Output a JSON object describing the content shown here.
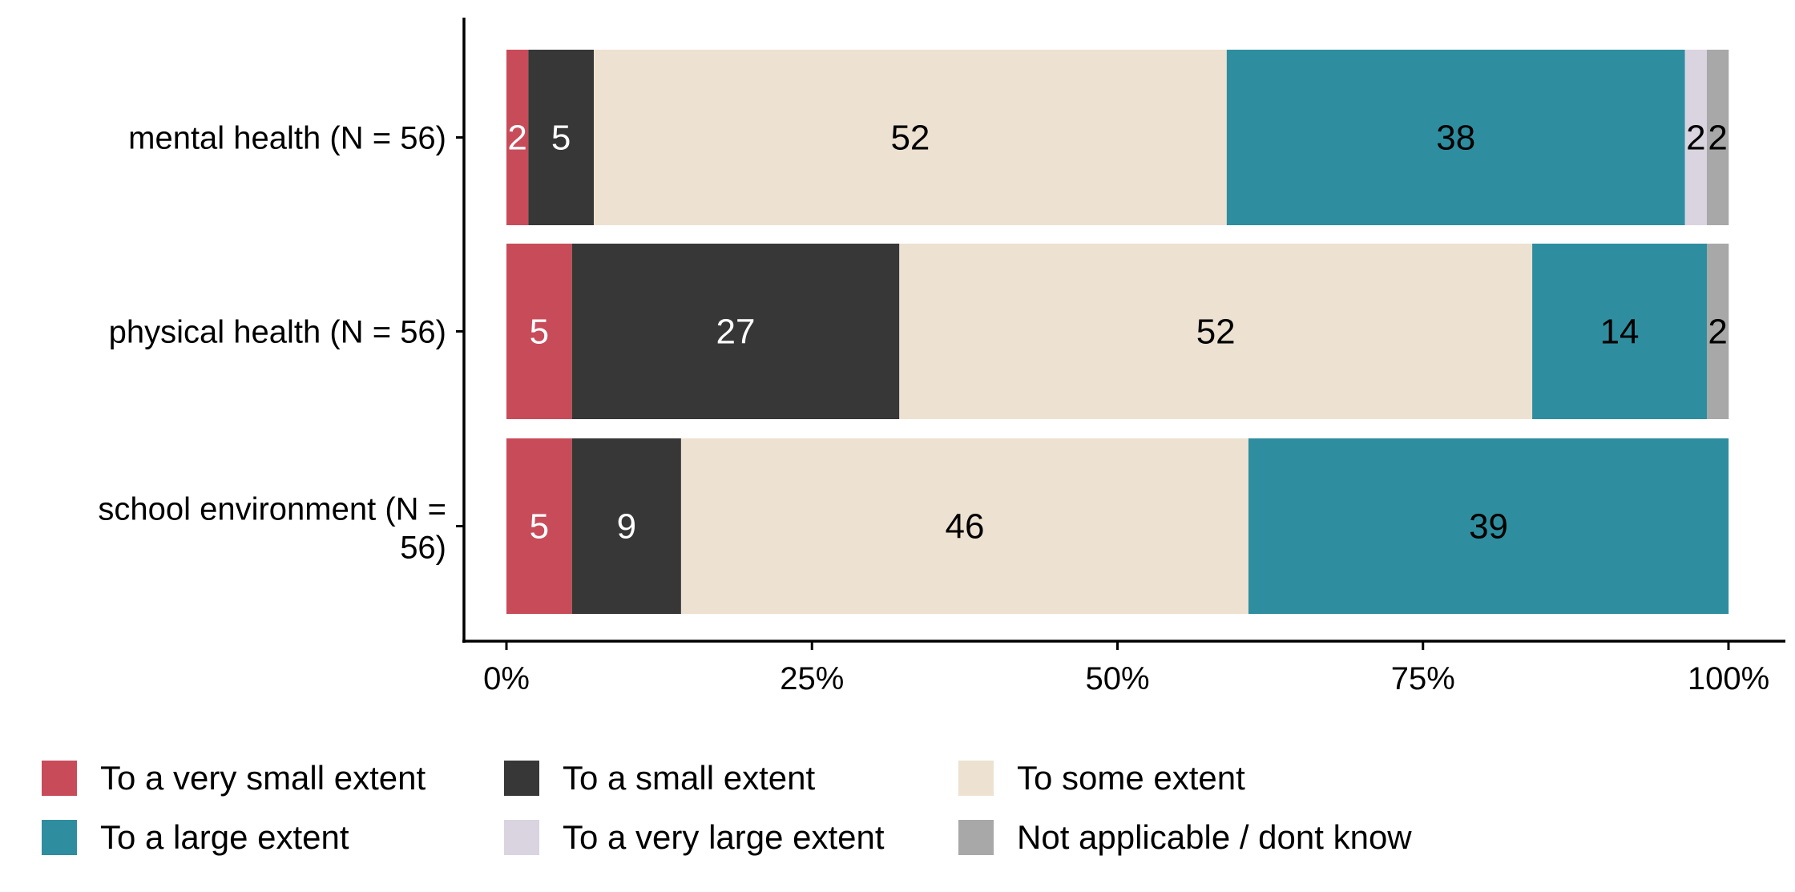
{
  "chart_data": {
    "type": "bar",
    "orientation": "horizontal",
    "stacked": true,
    "title": "",
    "xlabel": "",
    "ylabel": "",
    "xlim": [
      0,
      100
    ],
    "x_ticks": [
      "0%",
      "25%",
      "50%",
      "75%",
      "100%"
    ],
    "x_tick_values": [
      0,
      25,
      50,
      75,
      100
    ],
    "categories": [
      "mental health (N = 56)",
      "physical health (N = 56)",
      "school environment (N = 56)"
    ],
    "series": [
      {
        "name": "To a very small extent",
        "color": "#C84B5A",
        "label_color": "#FFFFFF",
        "values": [
          1.79,
          5.36,
          5.36
        ],
        "labels": [
          "2",
          "5",
          "5"
        ]
      },
      {
        "name": "To a small extent",
        "color": "#373737",
        "label_color": "#FFFFFF",
        "values": [
          5.36,
          26.79,
          8.93
        ],
        "labels": [
          "5",
          "27",
          "9"
        ]
      },
      {
        "name": "To some extent",
        "color": "#EDE1D1",
        "label_color": "#000000",
        "values": [
          51.79,
          51.79,
          46.43
        ],
        "labels": [
          "52",
          "52",
          "46"
        ]
      },
      {
        "name": "To a large extent",
        "color": "#2E8E9F",
        "label_color": "#000000",
        "values": [
          37.5,
          14.29,
          39.29
        ],
        "labels": [
          "38",
          "14",
          "39"
        ]
      },
      {
        "name": "To a very large extent",
        "color": "#DAD3E0",
        "label_color": "#000000",
        "values": [
          1.79,
          0,
          0
        ],
        "labels": [
          "2",
          "",
          ""
        ]
      },
      {
        "name": "Not applicable / dont know",
        "color": "#A8A8A8",
        "label_color": "#000000",
        "values": [
          1.79,
          1.79,
          0
        ],
        "labels": [
          "2",
          "2",
          ""
        ]
      }
    ],
    "legend_position": "bottom",
    "grid": false
  }
}
